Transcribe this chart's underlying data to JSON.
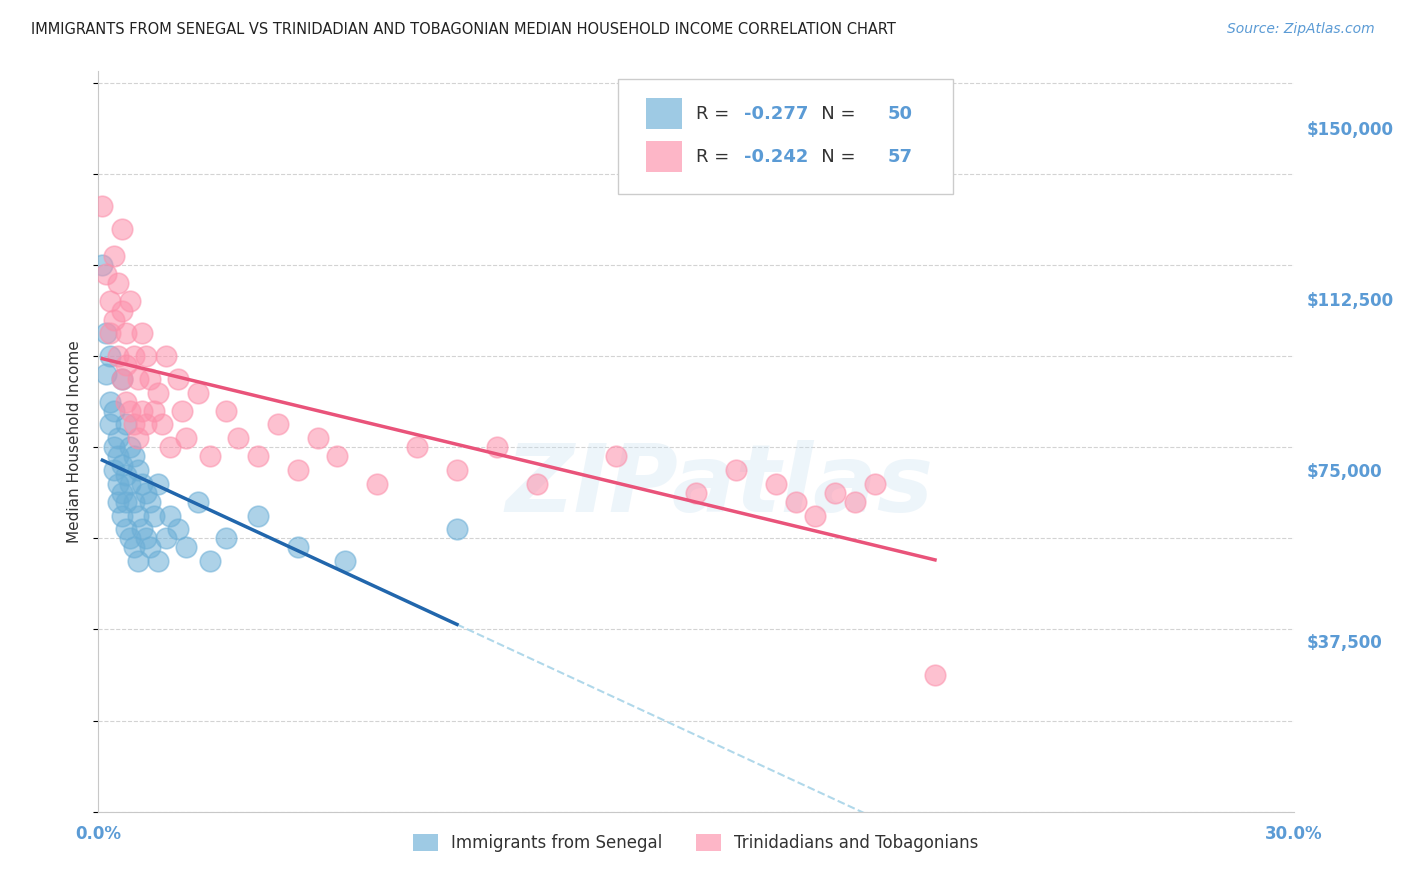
{
  "title": "IMMIGRANTS FROM SENEGAL VS TRINIDADIAN AND TOBAGONIAN MEDIAN HOUSEHOLD INCOME CORRELATION CHART",
  "source": "Source: ZipAtlas.com",
  "ylabel": "Median Household Income",
  "xmin": 0.0,
  "xmax": 0.3,
  "ymin": 0,
  "ymax": 162500,
  "yticks": [
    0,
    37500,
    75000,
    112500,
    150000
  ],
  "ytick_labels": [
    "",
    "$37,500",
    "$75,000",
    "$112,500",
    "$150,000"
  ],
  "xticks": [
    0.0,
    0.05,
    0.1,
    0.15,
    0.2,
    0.25,
    0.3
  ],
  "xtick_labels": [
    "0.0%",
    "",
    "",
    "",
    "",
    "",
    "30.0%"
  ],
  "blue_R": -0.277,
  "blue_N": 50,
  "pink_R": -0.242,
  "pink_N": 57,
  "blue_color": "#6baed6",
  "pink_color": "#fc8faa",
  "blue_line_color": "#2166ac",
  "pink_line_color": "#e9537a",
  "dashed_line_color": "#a8d4e8",
  "legend_label_blue": "Immigrants from Senegal",
  "legend_label_pink": "Trinidadians and Tobagonians",
  "watermark": "ZIPatlas",
  "background_color": "#ffffff",
  "title_color": "#222222",
  "axis_label_color": "#333333",
  "tick_color": "#5b9bd5",
  "grid_color": "#c8c8c8",
  "blue_scatter_x": [
    0.001,
    0.002,
    0.002,
    0.003,
    0.003,
    0.003,
    0.004,
    0.004,
    0.004,
    0.005,
    0.005,
    0.005,
    0.005,
    0.006,
    0.006,
    0.006,
    0.006,
    0.007,
    0.007,
    0.007,
    0.007,
    0.008,
    0.008,
    0.008,
    0.009,
    0.009,
    0.009,
    0.01,
    0.01,
    0.01,
    0.011,
    0.011,
    0.012,
    0.012,
    0.013,
    0.013,
    0.014,
    0.015,
    0.015,
    0.017,
    0.018,
    0.02,
    0.022,
    0.025,
    0.028,
    0.032,
    0.04,
    0.05,
    0.062,
    0.09
  ],
  "blue_scatter_y": [
    120000,
    105000,
    96000,
    90000,
    85000,
    100000,
    80000,
    88000,
    75000,
    82000,
    78000,
    72000,
    68000,
    95000,
    76000,
    70000,
    65000,
    85000,
    74000,
    68000,
    62000,
    80000,
    72000,
    60000,
    78000,
    68000,
    58000,
    75000,
    65000,
    55000,
    72000,
    62000,
    70000,
    60000,
    68000,
    58000,
    65000,
    72000,
    55000,
    60000,
    65000,
    62000,
    58000,
    68000,
    55000,
    60000,
    65000,
    58000,
    55000,
    62000
  ],
  "pink_scatter_x": [
    0.001,
    0.002,
    0.003,
    0.003,
    0.004,
    0.004,
    0.005,
    0.005,
    0.006,
    0.006,
    0.006,
    0.007,
    0.007,
    0.007,
    0.008,
    0.008,
    0.009,
    0.009,
    0.01,
    0.01,
    0.011,
    0.011,
    0.012,
    0.012,
    0.013,
    0.014,
    0.015,
    0.016,
    0.017,
    0.018,
    0.02,
    0.021,
    0.022,
    0.025,
    0.028,
    0.032,
    0.035,
    0.04,
    0.045,
    0.05,
    0.055,
    0.06,
    0.07,
    0.08,
    0.09,
    0.1,
    0.11,
    0.13,
    0.15,
    0.16,
    0.17,
    0.175,
    0.18,
    0.185,
    0.19,
    0.195,
    0.21
  ],
  "pink_scatter_y": [
    133000,
    118000,
    112000,
    105000,
    122000,
    108000,
    116000,
    100000,
    110000,
    95000,
    128000,
    105000,
    98000,
    90000,
    112000,
    88000,
    100000,
    85000,
    95000,
    82000,
    105000,
    88000,
    100000,
    85000,
    95000,
    88000,
    92000,
    85000,
    100000,
    80000,
    95000,
    88000,
    82000,
    92000,
    78000,
    88000,
    82000,
    78000,
    85000,
    75000,
    82000,
    78000,
    72000,
    80000,
    75000,
    80000,
    72000,
    78000,
    70000,
    75000,
    72000,
    68000,
    65000,
    70000,
    68000,
    72000,
    30000
  ]
}
